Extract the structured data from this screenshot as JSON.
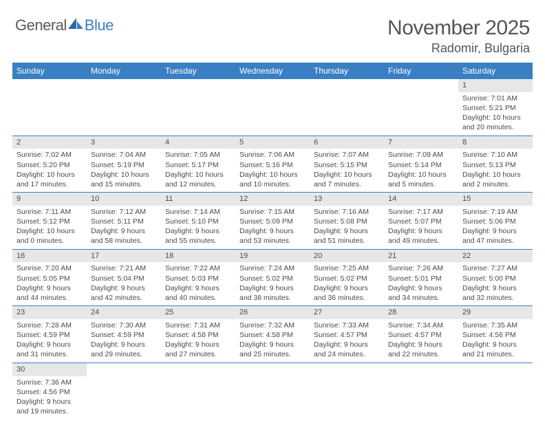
{
  "logo": {
    "word1": "General",
    "word2": "Blue"
  },
  "header": {
    "title": "November 2025",
    "location": "Radomir, Bulgaria"
  },
  "calendar": {
    "day_names": [
      "Sunday",
      "Monday",
      "Tuesday",
      "Wednesday",
      "Thursday",
      "Friday",
      "Saturday"
    ],
    "header_bg": "#3a7fc4",
    "header_fg": "#ffffff",
    "daynum_bg": "#e7e7e7",
    "rule_color": "#3a7fc4",
    "weeks": [
      [
        null,
        null,
        null,
        null,
        null,
        null,
        {
          "n": "1",
          "sr": "7:01 AM",
          "ss": "5:21 PM",
          "dl": "10 hours and 20 minutes."
        }
      ],
      [
        {
          "n": "2",
          "sr": "7:02 AM",
          "ss": "5:20 PM",
          "dl": "10 hours and 17 minutes."
        },
        {
          "n": "3",
          "sr": "7:04 AM",
          "ss": "5:19 PM",
          "dl": "10 hours and 15 minutes."
        },
        {
          "n": "4",
          "sr": "7:05 AM",
          "ss": "5:17 PM",
          "dl": "10 hours and 12 minutes."
        },
        {
          "n": "5",
          "sr": "7:06 AM",
          "ss": "5:16 PM",
          "dl": "10 hours and 10 minutes."
        },
        {
          "n": "6",
          "sr": "7:07 AM",
          "ss": "5:15 PM",
          "dl": "10 hours and 7 minutes."
        },
        {
          "n": "7",
          "sr": "7:09 AM",
          "ss": "5:14 PM",
          "dl": "10 hours and 5 minutes."
        },
        {
          "n": "8",
          "sr": "7:10 AM",
          "ss": "5:13 PM",
          "dl": "10 hours and 2 minutes."
        }
      ],
      [
        {
          "n": "9",
          "sr": "7:11 AM",
          "ss": "5:12 PM",
          "dl": "10 hours and 0 minutes."
        },
        {
          "n": "10",
          "sr": "7:12 AM",
          "ss": "5:11 PM",
          "dl": "9 hours and 58 minutes."
        },
        {
          "n": "11",
          "sr": "7:14 AM",
          "ss": "5:10 PM",
          "dl": "9 hours and 55 minutes."
        },
        {
          "n": "12",
          "sr": "7:15 AM",
          "ss": "5:09 PM",
          "dl": "9 hours and 53 minutes."
        },
        {
          "n": "13",
          "sr": "7:16 AM",
          "ss": "5:08 PM",
          "dl": "9 hours and 51 minutes."
        },
        {
          "n": "14",
          "sr": "7:17 AM",
          "ss": "5:07 PM",
          "dl": "9 hours and 49 minutes."
        },
        {
          "n": "15",
          "sr": "7:19 AM",
          "ss": "5:06 PM",
          "dl": "9 hours and 47 minutes."
        }
      ],
      [
        {
          "n": "16",
          "sr": "7:20 AM",
          "ss": "5:05 PM",
          "dl": "9 hours and 44 minutes."
        },
        {
          "n": "17",
          "sr": "7:21 AM",
          "ss": "5:04 PM",
          "dl": "9 hours and 42 minutes."
        },
        {
          "n": "18",
          "sr": "7:22 AM",
          "ss": "5:03 PM",
          "dl": "9 hours and 40 minutes."
        },
        {
          "n": "19",
          "sr": "7:24 AM",
          "ss": "5:02 PM",
          "dl": "9 hours and 38 minutes."
        },
        {
          "n": "20",
          "sr": "7:25 AM",
          "ss": "5:02 PM",
          "dl": "9 hours and 36 minutes."
        },
        {
          "n": "21",
          "sr": "7:26 AM",
          "ss": "5:01 PM",
          "dl": "9 hours and 34 minutes."
        },
        {
          "n": "22",
          "sr": "7:27 AM",
          "ss": "5:00 PM",
          "dl": "9 hours and 32 minutes."
        }
      ],
      [
        {
          "n": "23",
          "sr": "7:28 AM",
          "ss": "4:59 PM",
          "dl": "9 hours and 31 minutes."
        },
        {
          "n": "24",
          "sr": "7:30 AM",
          "ss": "4:59 PM",
          "dl": "9 hours and 29 minutes."
        },
        {
          "n": "25",
          "sr": "7:31 AM",
          "ss": "4:58 PM",
          "dl": "9 hours and 27 minutes."
        },
        {
          "n": "26",
          "sr": "7:32 AM",
          "ss": "4:58 PM",
          "dl": "9 hours and 25 minutes."
        },
        {
          "n": "27",
          "sr": "7:33 AM",
          "ss": "4:57 PM",
          "dl": "9 hours and 24 minutes."
        },
        {
          "n": "28",
          "sr": "7:34 AM",
          "ss": "4:57 PM",
          "dl": "9 hours and 22 minutes."
        },
        {
          "n": "29",
          "sr": "7:35 AM",
          "ss": "4:56 PM",
          "dl": "9 hours and 21 minutes."
        }
      ],
      [
        {
          "n": "30",
          "sr": "7:36 AM",
          "ss": "4:56 PM",
          "dl": "9 hours and 19 minutes."
        },
        null,
        null,
        null,
        null,
        null,
        null
      ]
    ],
    "labels": {
      "sunrise": "Sunrise:",
      "sunset": "Sunset:",
      "daylight": "Daylight:"
    }
  }
}
